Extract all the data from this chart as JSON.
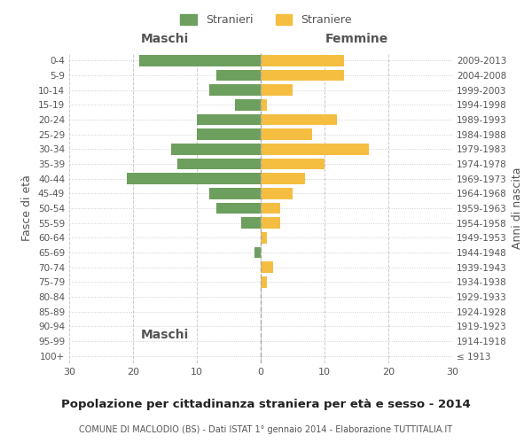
{
  "age_groups": [
    "100+",
    "95-99",
    "90-94",
    "85-89",
    "80-84",
    "75-79",
    "70-74",
    "65-69",
    "60-64",
    "55-59",
    "50-54",
    "45-49",
    "40-44",
    "35-39",
    "30-34",
    "25-29",
    "20-24",
    "15-19",
    "10-14",
    "5-9",
    "0-4"
  ],
  "birth_years": [
    "≤ 1913",
    "1914-1918",
    "1919-1923",
    "1924-1928",
    "1929-1933",
    "1934-1938",
    "1939-1943",
    "1944-1948",
    "1949-1953",
    "1954-1958",
    "1959-1963",
    "1964-1968",
    "1969-1973",
    "1974-1978",
    "1979-1983",
    "1984-1988",
    "1989-1993",
    "1994-1998",
    "1999-2003",
    "2004-2008",
    "2009-2013"
  ],
  "maschi": [
    0,
    0,
    0,
    0,
    0,
    0,
    0,
    1,
    0,
    3,
    7,
    8,
    21,
    13,
    14,
    10,
    10,
    4,
    8,
    7,
    19
  ],
  "femmine": [
    0,
    0,
    0,
    0,
    0,
    1,
    2,
    0,
    1,
    3,
    3,
    5,
    7,
    10,
    17,
    8,
    12,
    1,
    5,
    13,
    13
  ],
  "maschi_color": "#6d9f5e",
  "femmine_color": "#f5be41",
  "title": "Popolazione per cittadinanza straniera per età e sesso - 2014",
  "subtitle": "COMUNE DI MACLODIO (BS) - Dati ISTAT 1° gennaio 2014 - Elaborazione TUTTITALIA.IT",
  "xlabel_left": "Maschi",
  "xlabel_right": "Femmine",
  "ylabel_left": "Fasce di età",
  "ylabel_right": "Anni di nascita",
  "legend_maschi": "Stranieri",
  "legend_femmine": "Straniere",
  "xlim": 30,
  "background_color": "#ffffff",
  "grid_color": "#cccccc",
  "text_color": "#555555"
}
